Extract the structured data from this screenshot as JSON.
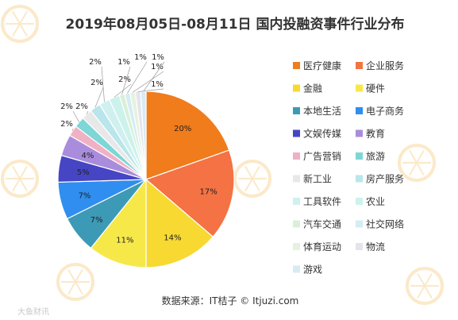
{
  "chart_data": {
    "type": "pie",
    "title": "2019年08月05日-08月11日 国内投融资事件行业分布",
    "source": "数据来源：IT桔子 © Itjuzi.com",
    "watermark": "大鱼财讯",
    "categories": [
      "医疗健康",
      "企业服务",
      "金融",
      "硬件",
      "本地生活",
      "电子商务",
      "文娱传媒",
      "教育",
      "广告营销",
      "旅游",
      "新工业",
      "房产服务",
      "工具软件",
      "农业",
      "汽车交通",
      "社交网络",
      "体育运动",
      "物流",
      "游戏"
    ],
    "values": [
      20,
      17,
      14,
      11,
      7,
      7,
      5,
      4,
      2,
      2,
      2,
      2,
      2,
      2,
      1,
      1,
      1,
      1,
      1
    ],
    "labels": [
      "20%",
      "17%",
      "14%",
      "11%",
      "7%",
      "7%",
      "5%",
      "4%",
      "2%",
      "2%",
      "2%",
      "2%",
      "2%",
      "2%",
      "1%",
      "1%",
      "1%",
      "1%",
      "1%"
    ],
    "colors": [
      "#f07c1c",
      "#f47243",
      "#f7d931",
      "#f7e84a",
      "#3d9ab7",
      "#2f8ef0",
      "#4646c4",
      "#a98ddc",
      "#f0b1c4",
      "#7ed6d6",
      "#e8e8e8",
      "#b8e6ea",
      "#d0f0f0",
      "#ccf2ec",
      "#d8f0d8",
      "#d4ecf4",
      "#e6f2e0",
      "#e4e4ee",
      "#d8eaf4"
    ],
    "legend_position": "right"
  }
}
